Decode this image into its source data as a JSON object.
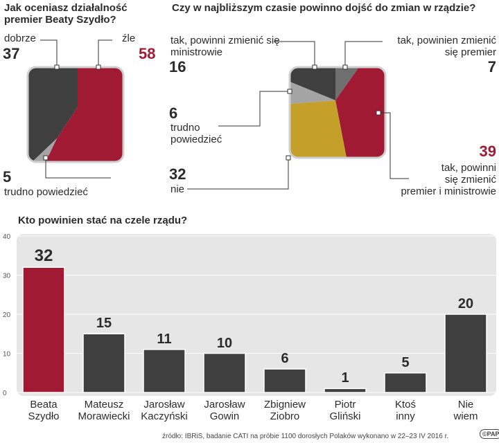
{
  "colors": {
    "dark": "#3f3f3f",
    "red": "#a01a33",
    "gray": "#a4a4a4",
    "gold": "#c4a02a",
    "panel": "#e6e6e6"
  },
  "q1": {
    "title_line1": "Jak oceniasz działalność",
    "title_line2": "premier Beaty Szydło?",
    "good_label": "dobrze",
    "good_value": "37",
    "bad_label": "źle",
    "bad_value": "58",
    "unsure_value": "5",
    "unsure_label": "trudno powiedzieć"
  },
  "q2": {
    "title": "Czy w najbliższym czasie powinno dojść do zmian w rządzie?",
    "ministers_line1": "tak, powinni zmienić się",
    "ministers_line2": "ministrowie",
    "ministers_value": "16",
    "premier_line1": "tak, powinien zmienić",
    "premier_line2": "się premier",
    "premier_value": "7",
    "unsure_value": "6",
    "unsure_line1": "trudno",
    "unsure_line2": "powiedzieć",
    "no_value": "32",
    "no_label": "nie",
    "both_value": "39",
    "both_line1": "tak, powinni",
    "both_line2": "się zmienić",
    "both_line3": "premier i ministrowie"
  },
  "chart_data": {
    "type": "bar",
    "title": "Kto powinien stać na czele rządu?",
    "ylim": [
      0,
      40
    ],
    "yticks": [
      0,
      10,
      20,
      30,
      40
    ],
    "categories": [
      {
        "line1": "Beata",
        "line2": "Szydło"
      },
      {
        "line1": "Mateusz",
        "line2": "Morawiecki"
      },
      {
        "line1": "Jarosław",
        "line2": "Kaczyński"
      },
      {
        "line1": "Jarosław",
        "line2": "Gowin"
      },
      {
        "line1": "Zbigniew",
        "line2": "Ziobro"
      },
      {
        "line1": "Piotr",
        "line2": "Gliński"
      },
      {
        "line1": "Ktoś",
        "line2": "inny"
      },
      {
        "line1": "Nie",
        "line2": "wiem"
      }
    ],
    "values": [
      32,
      15,
      11,
      10,
      6,
      1,
      5,
      20
    ],
    "highlight_index": 0
  },
  "source": "źródło: IBRiS, badanie CATI na próbie 1100 dorosłych Polaków wykonano w 22–23 IV 2016 r.",
  "logo": "©PAP"
}
